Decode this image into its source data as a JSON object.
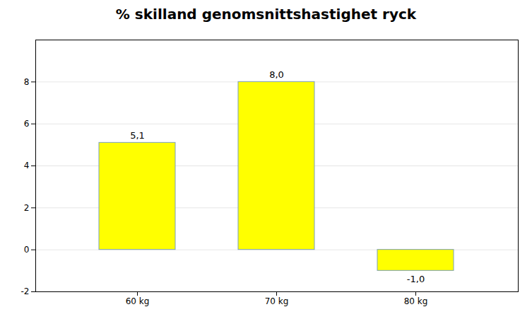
{
  "chart_data": {
    "type": "bar",
    "title": "% skilland genomsnittshastighet ryck",
    "categories": [
      "60 kg",
      "70 kg",
      "80 kg"
    ],
    "values": [
      5.1,
      8.0,
      -1.0
    ],
    "value_labels": [
      "5,1",
      "8,0",
      "-1,0"
    ],
    "data_labels": true,
    "color": "#FFFF00",
    "ylim": [
      -2,
      10
    ],
    "yticks": [
      -2,
      0,
      2,
      4,
      6,
      8
    ],
    "grid": true
  }
}
